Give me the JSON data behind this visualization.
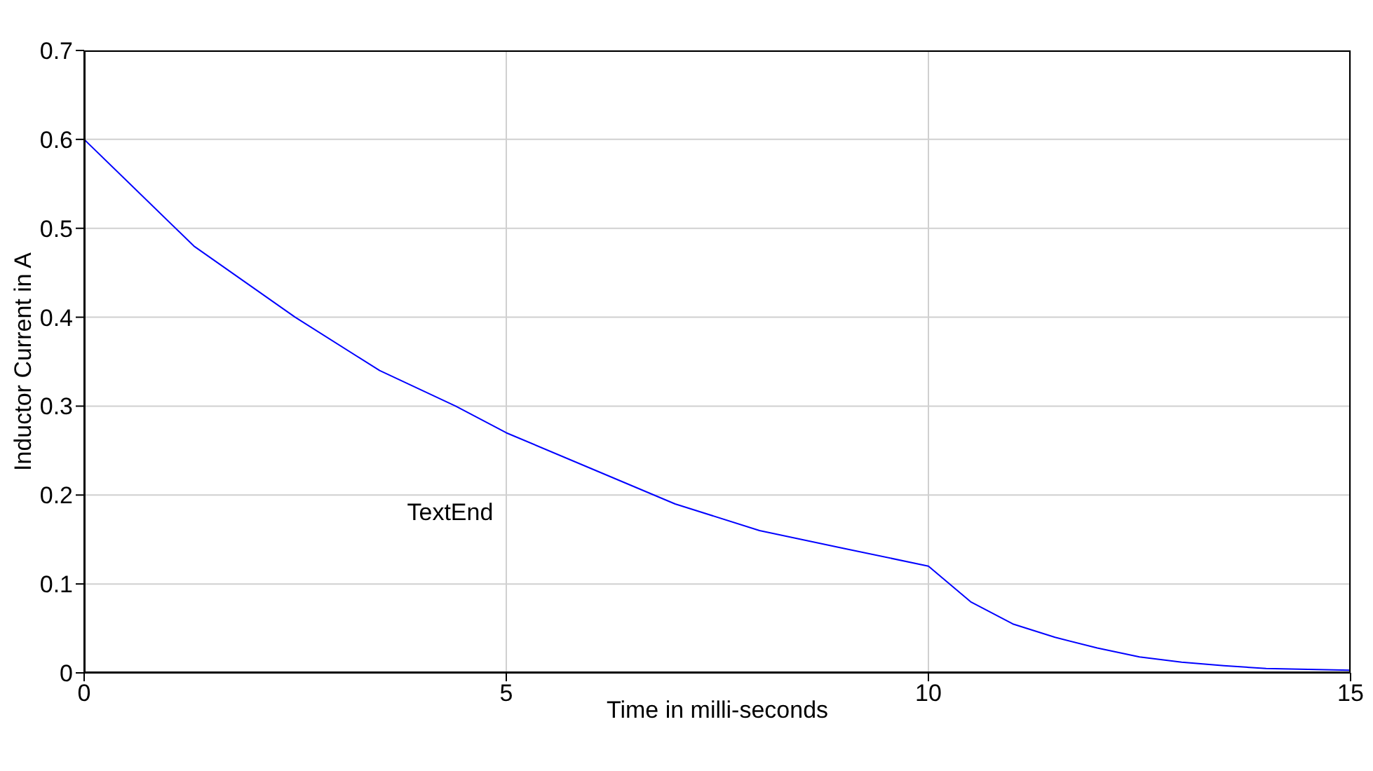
{
  "chart_data": {
    "type": "line",
    "xlabel": "Time in milli-seconds",
    "ylabel": "Inductor Current in A",
    "annotations": [
      "TextEnd"
    ],
    "x": [
      0,
      1.3,
      2.5,
      3.5,
      4.4,
      5,
      6,
      7,
      8,
      9,
      10,
      10.5,
      11,
      11.5,
      12,
      12.5,
      13,
      13.5,
      14,
      15
    ],
    "series": [
      {
        "color": "#0000ff",
        "values": [
          0.6,
          0.48,
          0.4,
          0.34,
          0.3,
          0.27,
          0.23,
          0.19,
          0.16,
          0.14,
          0.12,
          0.08,
          0.055,
          0.04,
          0.028,
          0.018,
          0.012,
          0.008,
          0.005,
          0.003
        ]
      }
    ],
    "xlim": [
      0,
      15
    ],
    "xticks": [
      0,
      5,
      10,
      15
    ],
    "ylim": [
      0,
      0.7
    ],
    "yticks": [
      0,
      0.1,
      0.2,
      0.3,
      0.4,
      0.5,
      0.6,
      0.7
    ],
    "grid": true,
    "marker": "none",
    "line_style": "solid"
  }
}
